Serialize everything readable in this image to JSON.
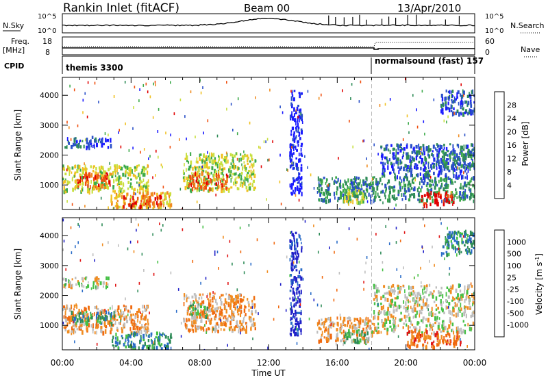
{
  "header": {
    "title": "Rankin Inlet (fitACF)",
    "beam": "Beam 00",
    "date": "13/Apr/2010"
  },
  "top_panels": {
    "nsky_label": "N.Sky",
    "nsky_ticks": [
      "10^5",
      "10^0"
    ],
    "nsearch_label": "N.Search",
    "nsearch_ticks": [
      "10^5",
      "10^0"
    ],
    "freq_label": "Freq.",
    "freq_unit": "[MHz]",
    "freq_ticks": [
      "18",
      "8"
    ],
    "nave_label": "Nave",
    "nave_ticks": [
      "60",
      "0"
    ],
    "cpid_label": "CPID",
    "cpid_segments": [
      {
        "label": "themis 3300",
        "start_hour": 0,
        "end_hour": 18
      },
      {
        "label": "normalsound (fast) 157",
        "start_hour": 18,
        "end_hour": 24
      }
    ]
  },
  "colors": {
    "velocity_scale": [
      "#2020c8",
      "#2a6cc8",
      "#2e8b57",
      "#46c046",
      "#bebebe",
      "#f08c20",
      "#f06a10",
      "#e01414"
    ],
    "power_scale": [
      "#1a1aff",
      "#2a50c8",
      "#2e8b57",
      "#3caa4a",
      "#c8e040",
      "#f0c020",
      "#f08c20",
      "#f05010",
      "#e00000"
    ]
  },
  "chart_data": [
    {
      "type": "heatmap",
      "name": "power",
      "xlabel": "Time UT",
      "ylabel": "Slant Range [km]",
      "x_ticks": [
        "00:00",
        "04:00",
        "08:00",
        "12:00",
        "16:00",
        "20:00",
        "00:00"
      ],
      "xlim_hours": [
        0,
        24
      ],
      "ylim": [
        180,
        4600
      ],
      "y_ticks": [
        1000,
        2000,
        3000,
        4000
      ],
      "colorbar_label": "Power [dB]",
      "colorbar_ticks": [
        "28",
        "24",
        "20",
        "16",
        "12",
        "8",
        "4"
      ],
      "regions": [
        {
          "t0": 0.0,
          "t1": 2.8,
          "r0": 2300,
          "r1": 2650,
          "level": 1
        },
        {
          "t0": 0.0,
          "t1": 5.0,
          "r0": 800,
          "r1": 1700,
          "level": 4
        },
        {
          "t0": 0.8,
          "t1": 2.8,
          "r0": 950,
          "r1": 1450,
          "level": 7
        },
        {
          "t0": 2.8,
          "t1": 6.3,
          "r0": 250,
          "r1": 800,
          "level": 5
        },
        {
          "t0": 3.5,
          "t1": 5.8,
          "r0": 320,
          "r1": 700,
          "level": 7
        },
        {
          "t0": 7.0,
          "t1": 11.2,
          "r0": 850,
          "r1": 2100,
          "level": 4
        },
        {
          "t0": 7.3,
          "t1": 8.6,
          "r0": 900,
          "r1": 1500,
          "level": 7
        },
        {
          "t0": 8.8,
          "t1": 9.6,
          "r0": 900,
          "r1": 1400,
          "level": 7
        },
        {
          "t0": 13.2,
          "t1": 13.9,
          "r0": 700,
          "r1": 4200,
          "level": 0
        },
        {
          "t0": 14.8,
          "t1": 24.0,
          "r0": 500,
          "r1": 1300,
          "level": 2
        },
        {
          "t0": 16.3,
          "t1": 17.5,
          "r0": 450,
          "r1": 900,
          "level": 4
        },
        {
          "t0": 18.5,
          "t1": 24.0,
          "r0": 1300,
          "r1": 2400,
          "level": 1
        },
        {
          "t0": 20.8,
          "t1": 22.8,
          "r0": 350,
          "r1": 800,
          "level": 8
        },
        {
          "t0": 22.0,
          "t1": 24.0,
          "r0": 1600,
          "r1": 2200,
          "level": 2
        },
        {
          "t0": 22.0,
          "t1": 24.0,
          "r0": 3400,
          "r1": 4200,
          "level": 1
        }
      ]
    },
    {
      "type": "heatmap",
      "name": "velocity",
      "xlabel": "Time UT",
      "ylabel": "Slant Range [km]",
      "x_ticks": [
        "00:00",
        "04:00",
        "08:00",
        "12:00",
        "16:00",
        "20:00",
        "00:00"
      ],
      "xlim_hours": [
        0,
        24
      ],
      "ylim": [
        180,
        4600
      ],
      "y_ticks": [
        1000,
        2000,
        3000,
        4000
      ],
      "colorbar_label": "Velocity [m s^-1]",
      "colorbar_ticks": [
        "1000",
        "500",
        "100",
        "25",
        "-25",
        "-100",
        "-500",
        "-1000"
      ],
      "regions": [
        {
          "t0": 0.0,
          "t1": 2.8,
          "r0": 2300,
          "r1": 2650,
          "level": 4
        },
        {
          "t0": 0.0,
          "t1": 5.0,
          "r0": 800,
          "r1": 1700,
          "level": 5
        },
        {
          "t0": 0.5,
          "t1": 3.0,
          "r0": 1100,
          "r1": 1500,
          "level": 2
        },
        {
          "t0": 2.8,
          "t1": 6.3,
          "r0": 250,
          "r1": 800,
          "level": 2
        },
        {
          "t0": 7.0,
          "t1": 11.2,
          "r0": 850,
          "r1": 2100,
          "level": 5
        },
        {
          "t0": 7.3,
          "t1": 8.4,
          "r0": 1300,
          "r1": 1800,
          "level": 3
        },
        {
          "t0": 13.2,
          "t1": 13.9,
          "r0": 700,
          "r1": 4200,
          "level": 0
        },
        {
          "t0": 14.8,
          "t1": 18.0,
          "r0": 500,
          "r1": 1300,
          "level": 5
        },
        {
          "t0": 16.3,
          "t1": 18.0,
          "r0": 450,
          "r1": 900,
          "level": 3
        },
        {
          "t0": 18.0,
          "t1": 24.0,
          "r0": 800,
          "r1": 2400,
          "level": 4
        },
        {
          "t0": 20.0,
          "t1": 23.2,
          "r0": 300,
          "r1": 900,
          "level": 6
        },
        {
          "t0": 22.0,
          "t1": 24.0,
          "r0": 3400,
          "r1": 4200,
          "level": 2
        }
      ]
    }
  ]
}
